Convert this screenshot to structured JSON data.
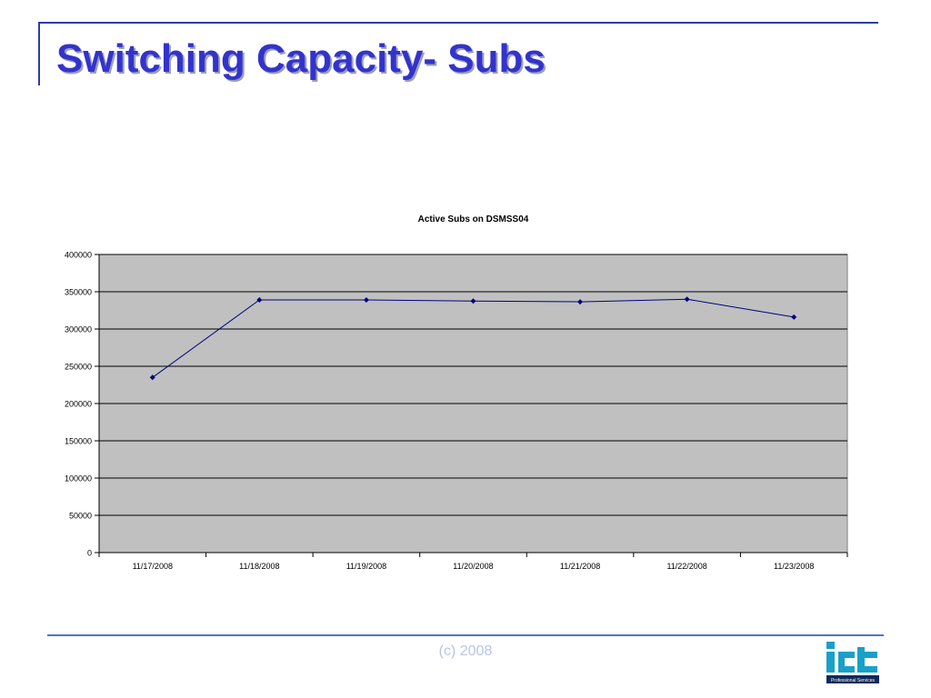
{
  "slide": {
    "title": "Switching Capacity- Subs",
    "footer": "(c) 2008",
    "logo_text": "iCT",
    "logo_subtext": "Professional Services"
  },
  "colors": {
    "title": "#3333cc",
    "rule": "#2b3ea8",
    "plot_background": "#c0c0c0",
    "series_line": "#000080",
    "footer_text": "#b8c4ea",
    "logo": "#1aa0c8"
  },
  "chart_data": {
    "type": "line",
    "title": "Active Subs on DSMSS04",
    "xlabel": "",
    "ylabel": "",
    "categories": [
      "11/17/2008",
      "11/18/2008",
      "11/19/2008",
      "11/20/2008",
      "11/21/2008",
      "11/22/2008",
      "11/23/2008"
    ],
    "series": [
      {
        "values": [
          235000,
          339000,
          339000,
          337500,
          336500,
          340000,
          316000
        ]
      }
    ],
    "ylim": [
      0,
      400000
    ],
    "yticks": [
      0,
      50000,
      100000,
      150000,
      200000,
      250000,
      300000,
      350000,
      400000
    ],
    "grid": true,
    "legend": "none",
    "marker": "diamond"
  }
}
